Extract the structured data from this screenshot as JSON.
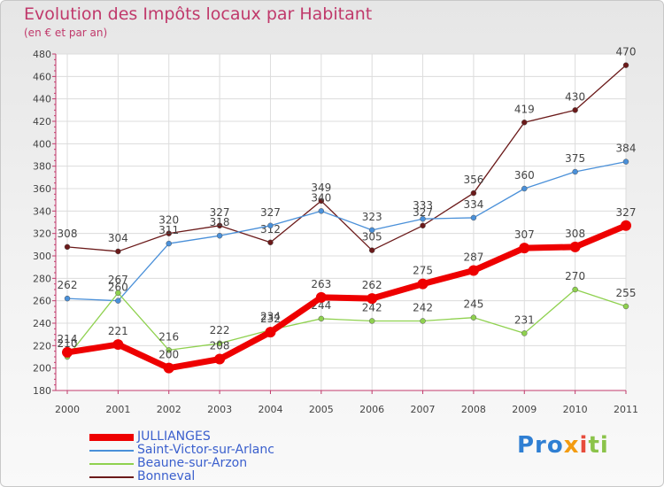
{
  "chart_data": {
    "type": "line",
    "title": "Evolution des Impôts locaux par Habitant",
    "subtitle": "(en € et par an)",
    "x": [
      "2000",
      "2001",
      "2002",
      "2003",
      "2004",
      "2005",
      "2006",
      "2007",
      "2008",
      "2009",
      "2010",
      "2011"
    ],
    "ylim": [
      180,
      480
    ],
    "yticks": [
      180,
      200,
      220,
      240,
      260,
      280,
      300,
      320,
      340,
      360,
      380,
      400,
      420,
      440,
      460,
      480
    ],
    "grid": true,
    "legend_position": "bottom-left",
    "series": [
      {
        "name": "Bonneval",
        "color": "#6b1a1a",
        "values": [
          308,
          304,
          320,
          327,
          312,
          349,
          305,
          327,
          356,
          419,
          430,
          470
        ]
      },
      {
        "name": "Saint-Victor-sur-Arlanc",
        "color": "#4a90d9",
        "values": [
          262,
          260,
          311,
          318,
          327,
          340,
          323,
          333,
          334,
          360,
          375,
          384
        ]
      },
      {
        "name": "Beaune-sur-Arzon",
        "color": "#8fd14f",
        "values": [
          210,
          267,
          216,
          222,
          234,
          244,
          242,
          242,
          245,
          231,
          270,
          255
        ]
      },
      {
        "name": "JULLIANGES",
        "color": "#ee0000",
        "values": [
          214,
          221,
          200,
          208,
          232,
          263,
          262,
          275,
          287,
          307,
          308,
          327
        ]
      }
    ]
  },
  "legend": [
    {
      "label": "JULLIANGES",
      "color": "#ee0000"
    },
    {
      "label": "Saint-Victor-sur-Arlanc",
      "color": "#4a90d9"
    },
    {
      "label": "Beaune-sur-Arzon",
      "color": "#8fd14f"
    },
    {
      "label": "Bonneval",
      "color": "#6b1a1a"
    }
  ],
  "logo": {
    "p1": "Pro",
    "p2": "x",
    "p3": "i",
    "p4": "ti"
  }
}
